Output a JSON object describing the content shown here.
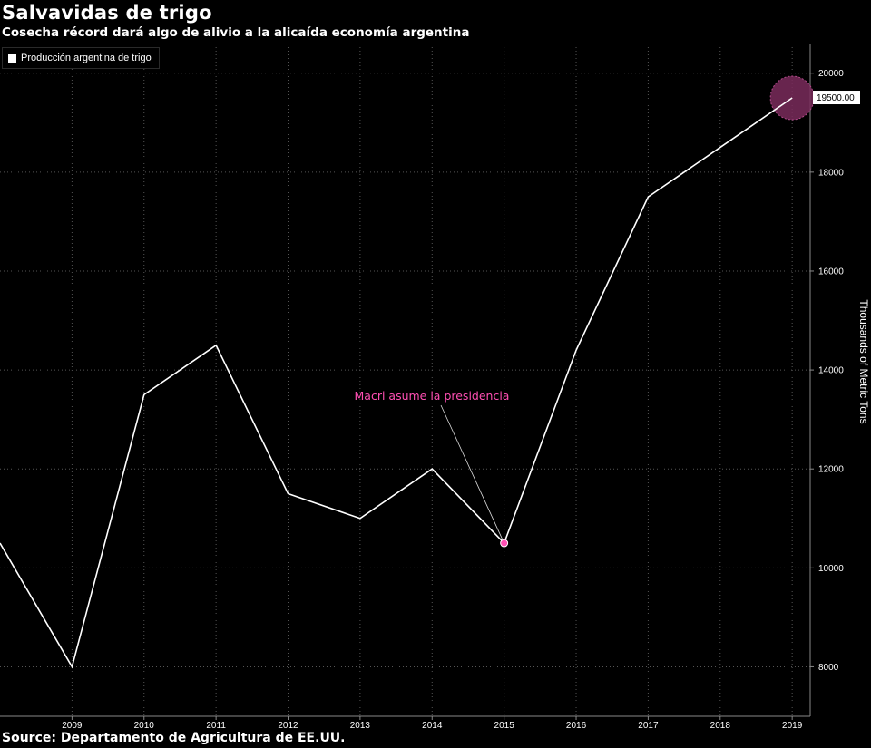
{
  "header": {
    "title": "Salvavidas de trigo",
    "subtitle": "Cosecha récord dará algo de alivio a la alicaída economía argentina"
  },
  "footer": {
    "source": "Source: Departamento de Agricultura de EE.UU."
  },
  "colors": {
    "background": "#000000",
    "line": "#ffffff",
    "grid": "#555555",
    "annotation": "#ff4fb3",
    "highlight": "#7a2b5c"
  },
  "chart_data": {
    "type": "line",
    "title": "Salvavidas de trigo",
    "subtitle": "Cosecha récord dará algo de alivio a la alicaída economía argentina",
    "ylabel": "Thousands of Metric Tons",
    "y_axis_position": "right",
    "ylim": [
      7000,
      20600
    ],
    "yticks": [
      8000,
      10000,
      12000,
      14000,
      16000,
      18000,
      20000
    ],
    "xlim": [
      2008,
      2019.25
    ],
    "xticks": [
      2009,
      2010,
      2011,
      2012,
      2013,
      2014,
      2015,
      2016,
      2017,
      2018,
      2019
    ],
    "grid": true,
    "legend_position": "top-left",
    "series": [
      {
        "name": "Producción argentina de trigo",
        "x": [
          2008,
          2009,
          2010,
          2011,
          2012,
          2013,
          2014,
          2015,
          2016,
          2017,
          2018,
          2019
        ],
        "values": [
          10500,
          8000,
          13500,
          14500,
          11500,
          11000,
          12000,
          10500,
          14400,
          17500,
          18500,
          19500
        ]
      }
    ],
    "last_value_label": "19500.00",
    "annotations": [
      {
        "text": "Macri asume la presidencia",
        "x": 2015,
        "y": 10500
      }
    ]
  }
}
